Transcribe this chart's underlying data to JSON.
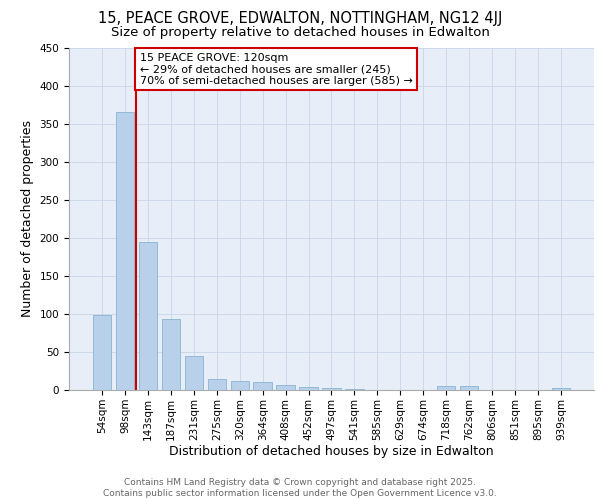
{
  "title": "15, PEACE GROVE, EDWALTON, NOTTINGHAM, NG12 4JJ",
  "subtitle": "Size of property relative to detached houses in Edwalton",
  "xlabel": "Distribution of detached houses by size in Edwalton",
  "ylabel": "Number of detached properties",
  "categories": [
    "54sqm",
    "98sqm",
    "143sqm",
    "187sqm",
    "231sqm",
    "275sqm",
    "320sqm",
    "364sqm",
    "408sqm",
    "452sqm",
    "497sqm",
    "541sqm",
    "585sqm",
    "629sqm",
    "674sqm",
    "718sqm",
    "762sqm",
    "806sqm",
    "851sqm",
    "895sqm",
    "939sqm"
  ],
  "values": [
    99,
    365,
    195,
    93,
    45,
    15,
    12,
    10,
    6,
    4,
    3,
    1,
    0,
    0,
    0,
    5,
    5,
    0,
    0,
    0,
    3
  ],
  "bar_color": "#b8d0ea",
  "bar_edge_color": "#7aacce",
  "background_color": "#e8eef8",
  "grid_color": "#c8d4e8",
  "property_line_x": 1.5,
  "annotation_line1": "15 PEACE GROVE: 120sqm",
  "annotation_line2": "← 29% of detached houses are smaller (245)",
  "annotation_line3": "70% of semi-detached houses are larger (585) →",
  "annotation_box_color": "#ffffff",
  "annotation_box_edge": "#cc0000",
  "property_line_color": "#cc0000",
  "ylim": [
    0,
    450
  ],
  "yticks": [
    0,
    50,
    100,
    150,
    200,
    250,
    300,
    350,
    400,
    450
  ],
  "footer_line1": "Contains HM Land Registry data © Crown copyright and database right 2025.",
  "footer_line2": "Contains public sector information licensed under the Open Government Licence v3.0.",
  "title_fontsize": 10.5,
  "subtitle_fontsize": 9.5,
  "axis_label_fontsize": 9,
  "tick_fontsize": 7.5,
  "footer_fontsize": 6.5,
  "annotation_fontsize": 8
}
